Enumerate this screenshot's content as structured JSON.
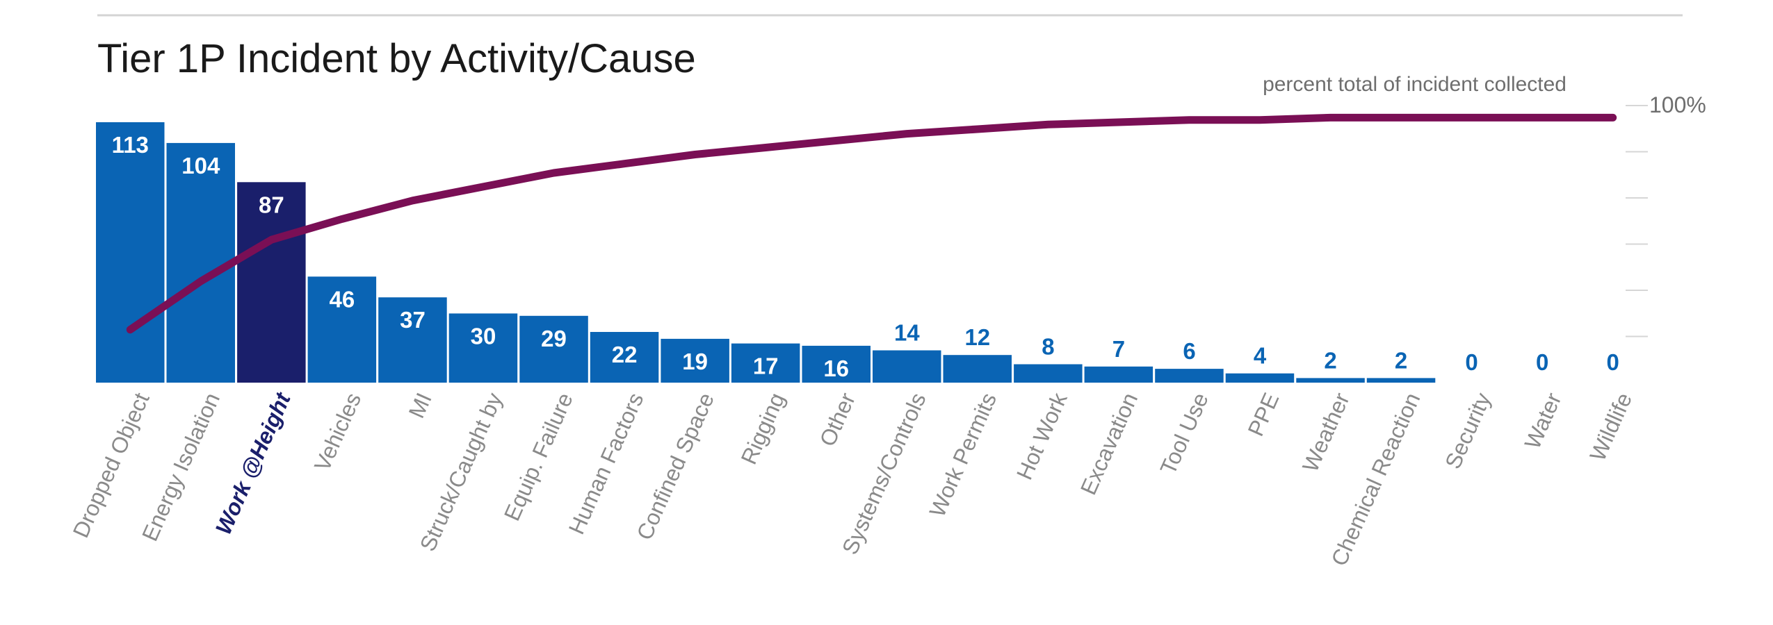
{
  "chart_data": {
    "type": "bar",
    "title": "Tier 1P Incident by Activity/Cause",
    "categories": [
      "Dropped Object",
      "Energy Isolation",
      "Work @Height",
      "Vehicles",
      "MI",
      "Struck/Caught by",
      "Equip. Failure",
      "Human Factors",
      "Confined Space",
      "Rigging",
      "Other",
      "Systems/Controls",
      "Work Permits",
      "Hot Work",
      "Excavation",
      "Tool Use",
      "PPE",
      "Weather",
      "Chemical Reaction",
      "Security",
      "Water",
      "Wildlife"
    ],
    "values": [
      113,
      104,
      87,
      46,
      37,
      30,
      29,
      22,
      19,
      17,
      16,
      14,
      12,
      8,
      7,
      6,
      4,
      2,
      2,
      0,
      0,
      0
    ],
    "highlighted_category": "Work @Height",
    "line_series": {
      "label": "percent total of incident collected",
      "values": [
        23,
        44,
        62,
        71,
        79,
        85,
        91,
        95,
        99,
        102,
        105,
        108,
        110,
        112,
        113,
        114,
        114,
        115,
        115,
        115,
        115,
        115
      ]
    },
    "right_axis_label": "100%",
    "ylim": [
      0,
      113
    ],
    "colors": {
      "bar": "#0a64b4",
      "bar_highlight": "#1a1f6b",
      "line": "#7a0f55",
      "label_out": "#0a64b4",
      "axis_text": "#8a8a8a"
    }
  }
}
